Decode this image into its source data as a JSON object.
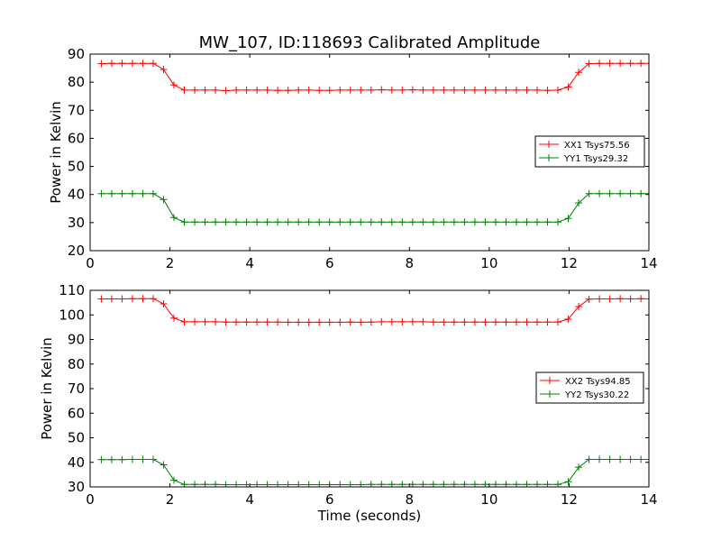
{
  "figure": {
    "title": "MW_107, ID:118693 Calibrated Amplitude"
  },
  "chart_data": [
    {
      "type": "line",
      "title": "MW_107, ID:118693 Calibrated Amplitude",
      "xlabel": "",
      "ylabel": "Power in Kelvin",
      "xlim": [
        0,
        14
      ],
      "ylim": [
        20,
        90
      ],
      "xticks": [
        "0",
        "2",
        "4",
        "6",
        "8",
        "10",
        "12",
        "14"
      ],
      "yticks": [
        "20",
        "30",
        "40",
        "50",
        "60",
        "70",
        "80",
        "90"
      ],
      "grid": false,
      "legend_position": "center-right",
      "x": [
        0.28,
        0.54,
        0.8,
        1.06,
        1.32,
        1.58,
        1.84,
        2.1,
        2.36,
        2.62,
        2.88,
        3.14,
        3.4,
        3.66,
        3.92,
        4.18,
        4.44,
        4.7,
        4.96,
        5.22,
        5.48,
        5.74,
        6.0,
        6.26,
        6.52,
        6.78,
        7.04,
        7.3,
        7.56,
        7.82,
        8.08,
        8.34,
        8.6,
        8.86,
        9.12,
        9.38,
        9.64,
        9.9,
        10.16,
        10.42,
        10.68,
        10.94,
        11.2,
        11.46,
        11.72,
        11.98,
        12.24,
        12.5,
        12.76,
        13.02,
        13.28,
        13.54,
        13.8,
        14.06
      ],
      "series": [
        {
          "name": "XX1 Tsys75.56",
          "color": "#ff0000",
          "values": [
            86.6,
            86.7,
            86.7,
            86.7,
            86.7,
            86.7,
            84.5,
            79.0,
            77.2,
            77.2,
            77.2,
            77.2,
            77.0,
            77.2,
            77.2,
            77.2,
            77.2,
            77.1,
            77.1,
            77.2,
            77.2,
            77.1,
            77.1,
            77.2,
            77.2,
            77.2,
            77.2,
            77.3,
            77.2,
            77.2,
            77.3,
            77.2,
            77.2,
            77.2,
            77.2,
            77.2,
            77.2,
            77.2,
            77.2,
            77.2,
            77.2,
            77.2,
            77.2,
            77.1,
            77.2,
            78.3,
            83.5,
            86.6,
            86.7,
            86.7,
            86.7,
            86.7,
            86.7,
            86.7
          ]
        },
        {
          "name": "YY1 Tsys29.32",
          "color": "#008000",
          "values": [
            40.3,
            40.3,
            40.3,
            40.3,
            40.3,
            40.3,
            38.2,
            31.8,
            30.2,
            30.2,
            30.2,
            30.2,
            30.2,
            30.2,
            30.2,
            30.2,
            30.2,
            30.2,
            30.2,
            30.2,
            30.2,
            30.2,
            30.2,
            30.2,
            30.2,
            30.2,
            30.2,
            30.2,
            30.2,
            30.2,
            30.2,
            30.2,
            30.2,
            30.2,
            30.2,
            30.2,
            30.2,
            30.2,
            30.2,
            30.2,
            30.2,
            30.2,
            30.2,
            30.2,
            30.2,
            31.5,
            37.0,
            40.3,
            40.3,
            40.3,
            40.3,
            40.3,
            40.3,
            40.3
          ]
        }
      ]
    },
    {
      "type": "line",
      "title": "",
      "xlabel": "Time (seconds)",
      "ylabel": "Power in Kelvin",
      "xlim": [
        0,
        14
      ],
      "ylim": [
        30,
        110
      ],
      "xticks": [
        "0",
        "2",
        "4",
        "6",
        "8",
        "10",
        "12",
        "14"
      ],
      "yticks": [
        "30",
        "40",
        "50",
        "60",
        "70",
        "80",
        "90",
        "100",
        "110"
      ],
      "grid": false,
      "legend_position": "center-right",
      "x": [
        0.28,
        0.54,
        0.8,
        1.06,
        1.32,
        1.58,
        1.84,
        2.1,
        2.36,
        2.62,
        2.88,
        3.14,
        3.4,
        3.66,
        3.92,
        4.18,
        4.44,
        4.7,
        4.96,
        5.22,
        5.48,
        5.74,
        6.0,
        6.26,
        6.52,
        6.78,
        7.04,
        7.3,
        7.56,
        7.82,
        8.08,
        8.34,
        8.6,
        8.86,
        9.12,
        9.38,
        9.64,
        9.9,
        10.16,
        10.42,
        10.68,
        10.94,
        11.2,
        11.46,
        11.72,
        11.98,
        12.24,
        12.5,
        12.76,
        13.02,
        13.28,
        13.54,
        13.8,
        14.06
      ],
      "series": [
        {
          "name": "XX2 Tsys94.85",
          "color": "#ff0000",
          "values": [
            106.5,
            106.5,
            106.5,
            106.6,
            106.6,
            106.6,
            104.5,
            98.7,
            97.2,
            97.2,
            97.2,
            97.2,
            97.1,
            97.1,
            97.1,
            97.1,
            97.1,
            97.1,
            97.0,
            97.0,
            97.0,
            97.0,
            97.0,
            97.0,
            97.1,
            97.0,
            97.1,
            97.2,
            97.2,
            97.2,
            97.2,
            97.2,
            97.1,
            97.1,
            97.1,
            97.1,
            97.1,
            97.1,
            97.1,
            97.1,
            97.1,
            97.1,
            97.1,
            97.1,
            97.1,
            98.3,
            103.4,
            106.4,
            106.5,
            106.5,
            106.6,
            106.5,
            106.6,
            106.5
          ]
        },
        {
          "name": "YY2 Tsys30.22",
          "color": "#008000",
          "values": [
            41.1,
            41.1,
            41.1,
            41.2,
            41.2,
            41.2,
            39.0,
            32.7,
            31.0,
            31.0,
            31.0,
            31.0,
            30.9,
            30.9,
            30.9,
            30.9,
            30.9,
            30.9,
            30.9,
            30.9,
            30.9,
            30.9,
            30.9,
            30.9,
            30.9,
            30.9,
            31.0,
            31.0,
            31.0,
            31.0,
            31.0,
            31.0,
            31.0,
            31.0,
            31.0,
            31.0,
            31.0,
            31.0,
            31.0,
            31.0,
            31.0,
            31.0,
            31.0,
            31.0,
            31.0,
            32.1,
            38.0,
            41.2,
            41.2,
            41.2,
            41.2,
            41.2,
            41.2,
            41.2
          ]
        }
      ]
    }
  ]
}
